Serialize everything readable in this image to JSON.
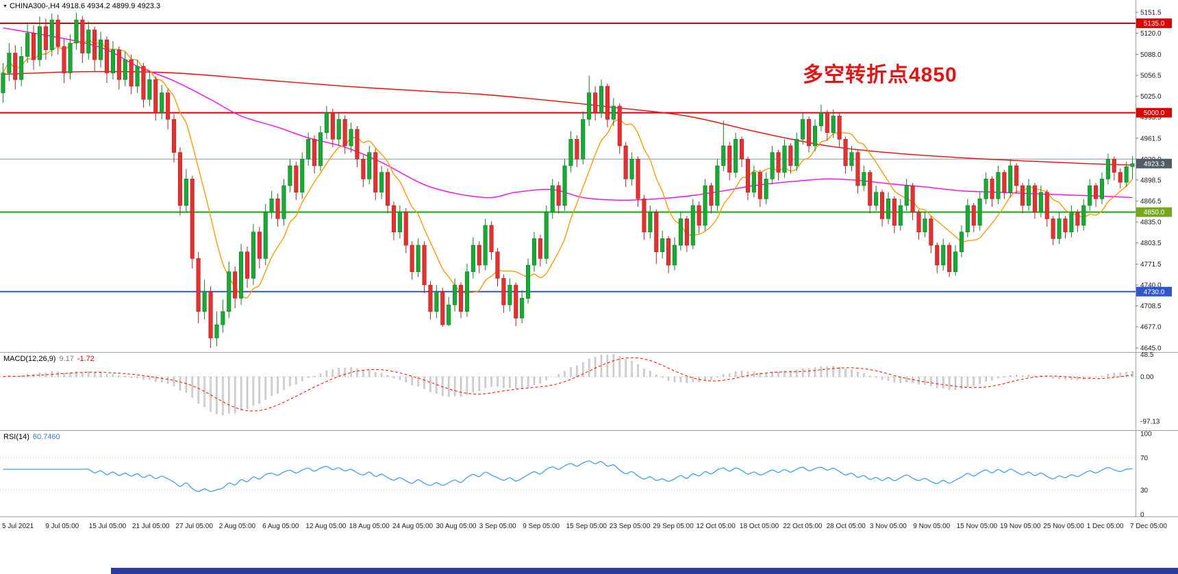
{
  "header": {
    "symbol_line": "CHINA300-,H4  4918.6 4934.2 4899.9 4923.3"
  },
  "annotation": {
    "text": "多空转折点4850",
    "color": "#e21414"
  },
  "colors": {
    "bottom_bar": "#2b3a9e",
    "separator": "#9aa0a6",
    "axis_text": "#1a1a1a"
  },
  "chart_data": {
    "type": "candlestick",
    "symbol": "CHINA300-",
    "timeframe": "H4",
    "title": "CHINA300-,H4",
    "last_candle": {
      "open": 4918.6,
      "high": 4934.2,
      "low": 4899.9,
      "close": 4923.3
    },
    "price_axis": {
      "min": 4645.0,
      "max": 5151.5,
      "ticks": [
        "5151.5",
        "5120.0",
        "5088.0",
        "5056.5",
        "5025.0",
        "4993.5",
        "4961.5",
        "4930.0",
        "4898.5",
        "4866.5",
        "4835.0",
        "4803.5",
        "4771.5",
        "4740.0",
        "4708.5",
        "4677.0",
        "4645.0"
      ]
    },
    "time_axis": [
      "5 Jul 2021",
      "9 Jul 05:00",
      "15 Jul 05:00",
      "21 Jul 05:00",
      "27 Jul 05:00",
      "2 Aug 05:00",
      "6 Aug 05:00",
      "12 Aug 05:00",
      "18 Aug 05:00",
      "24 Aug 05:00",
      "30 Aug 05:00",
      "3 Sep 05:00",
      "9 Sep 05:00",
      "15 Sep 05:00",
      "23 Sep 05:00",
      "29 Sep 05:00",
      "12 Oct 05:00",
      "18 Oct 05:00",
      "22 Oct 05:00",
      "28 Oct 05:00",
      "3 Nov 05:00",
      "9 Nov 05:00",
      "15 Nov 05:00",
      "19 Nov 05:00",
      "25 Nov 05:00",
      "1 Dec 05:00",
      "7 Dec 05:00"
    ],
    "levels": [
      {
        "value": 5135.0,
        "label": "5135.0",
        "color": "#dd0000",
        "badge": "#dd0000",
        "width": 2
      },
      {
        "value": 5000.0,
        "label": "5000.0",
        "color": "#dd0000",
        "badge": "#dd0000",
        "width": 2
      },
      {
        "value": 4930.0,
        "label": "",
        "color": "#7e99ad",
        "badge": "",
        "width": 1
      },
      {
        "value": 4850.0,
        "label": "4850.0",
        "color": "#00b200",
        "badge": "#76a81c",
        "width": 2
      },
      {
        "value": 4730.0,
        "label": "4730.0",
        "color": "#2f55cf",
        "badge": "#2f55cf",
        "width": 2
      }
    ],
    "current_price": {
      "value": 4923.3,
      "label": "4923.3",
      "badge": "#4e5d68"
    },
    "candle_colors": {
      "up_fill": "#19a934",
      "up_stroke": "#0c7d24",
      "down_fill": "#e23131",
      "down_stroke": "#b01f1f"
    },
    "overlays": {
      "slow_ma": {
        "color": "#ff0000",
        "points": [
          [
            0,
            5058
          ],
          [
            14,
            5062
          ],
          [
            28,
            5060
          ],
          [
            42,
            5050
          ],
          [
            56,
            5040
          ],
          [
            70,
            5032
          ],
          [
            78,
            5028
          ],
          [
            90,
            5018
          ],
          [
            100,
            5008
          ],
          [
            112,
            4995
          ],
          [
            124,
            4970
          ],
          [
            135,
            4950
          ],
          [
            146,
            4939
          ],
          [
            157,
            4932
          ],
          [
            168,
            4927
          ],
          [
            178,
            4923
          ],
          [
            185,
            4921
          ]
        ]
      },
      "mid_ma": {
        "color": "#ff00ff",
        "points": [
          [
            0,
            5128
          ],
          [
            11,
            5110
          ],
          [
            17,
            5095
          ],
          [
            22,
            5070
          ],
          [
            28,
            5048
          ],
          [
            34,
            5020
          ],
          [
            39,
            4995
          ],
          [
            45,
            4978
          ],
          [
            50,
            4962
          ],
          [
            56,
            4948
          ],
          [
            62,
            4925
          ],
          [
            70,
            4888
          ],
          [
            79,
            4872
          ],
          [
            84,
            4880
          ],
          [
            90,
            4884
          ],
          [
            95,
            4872
          ],
          [
            101,
            4868
          ],
          [
            107,
            4870
          ],
          [
            112,
            4874
          ],
          [
            118,
            4882
          ],
          [
            123,
            4890
          ],
          [
            129,
            4896
          ],
          [
            135,
            4900
          ],
          [
            140,
            4898
          ],
          [
            146,
            4892
          ],
          [
            151,
            4888
          ],
          [
            157,
            4882
          ],
          [
            163,
            4880
          ],
          [
            168,
            4878
          ],
          [
            174,
            4876
          ],
          [
            180,
            4874
          ],
          [
            185,
            4872
          ]
        ]
      },
      "fast_ma": {
        "color": "#ff9900",
        "period": 9
      }
    },
    "macd": {
      "label": "MACD(12,26,9)",
      "value_main": "9.17",
      "value_signal": "-1.72",
      "fast": 12,
      "slow": 26,
      "signal": 9,
      "axis": [
        "48.5",
        "0.00",
        "-97.13"
      ],
      "histogram_fill": "#d6d6d6",
      "histogram_stroke": "#9e9e9e",
      "signal_color": "#ff0000"
    },
    "rsi": {
      "label": "RSI(14)",
      "value_text": "60.7460",
      "period": 14,
      "axis": [
        "100",
        "70",
        "30",
        "0"
      ],
      "guide_levels": [
        70,
        30
      ],
      "color": "#3da0e8"
    },
    "candles": [
      [
        5030,
        5075,
        5015,
        5060
      ],
      [
        5060,
        5105,
        5048,
        5090
      ],
      [
        5090,
        5102,
        5035,
        5050
      ],
      [
        5050,
        5100,
        5040,
        5085
      ],
      [
        5085,
        5135,
        5075,
        5120
      ],
      [
        5120,
        5132,
        5065,
        5080
      ],
      [
        5080,
        5145,
        5070,
        5130
      ],
      [
        5130,
        5142,
        5080,
        5095
      ],
      [
        5095,
        5150,
        5085,
        5140
      ],
      [
        5140,
        5148,
        5088,
        5100
      ],
      [
        5100,
        5112,
        5045,
        5060
      ],
      [
        5060,
        5118,
        5050,
        5105
      ],
      [
        5105,
        5151,
        5095,
        5140
      ],
      [
        5140,
        5146,
        5075,
        5090
      ],
      [
        5090,
        5138,
        5080,
        5125
      ],
      [
        5125,
        5130,
        5062,
        5080
      ],
      [
        5080,
        5122,
        5068,
        5110
      ],
      [
        5110,
        5115,
        5045,
        5060
      ],
      [
        5060,
        5108,
        5050,
        5095
      ],
      [
        5095,
        5100,
        5035,
        5050
      ],
      [
        5050,
        5092,
        5040,
        5080
      ],
      [
        5080,
        5088,
        5028,
        5040
      ],
      [
        5040,
        5080,
        5030,
        5070
      ],
      [
        5070,
        5075,
        5008,
        5020
      ],
      [
        5020,
        5062,
        5010,
        5050
      ],
      [
        5050,
        5055,
        4988,
        5000
      ],
      [
        5000,
        5042,
        4990,
        5030
      ],
      [
        5030,
        5036,
        4975,
        4990
      ],
      [
        4990,
        4998,
        4925,
        4940
      ],
      [
        4940,
        4948,
        4845,
        4860
      ],
      [
        4860,
        4915,
        4850,
        4900
      ],
      [
        4900,
        4905,
        4765,
        4780
      ],
      [
        4780,
        4790,
        4682,
        4700
      ],
      [
        4700,
        4748,
        4688,
        4730
      ],
      [
        4730,
        4738,
        4645,
        4660
      ],
      [
        4660,
        4700,
        4648,
        4680
      ],
      [
        4680,
        4718,
        4668,
        4700
      ],
      [
        4700,
        4775,
        4690,
        4760
      ],
      [
        4760,
        4768,
        4705,
        4720
      ],
      [
        4720,
        4802,
        4710,
        4790
      ],
      [
        4790,
        4798,
        4736,
        4750
      ],
      [
        4750,
        4832,
        4740,
        4820
      ],
      [
        4820,
        4828,
        4765,
        4780
      ],
      [
        4780,
        4862,
        4770,
        4850
      ],
      [
        4850,
        4882,
        4840,
        4870
      ],
      [
        4870,
        4878,
        4828,
        4840
      ],
      [
        4840,
        4900,
        4830,
        4890
      ],
      [
        4890,
        4930,
        4880,
        4920
      ],
      [
        4920,
        4926,
        4868,
        4880
      ],
      [
        4880,
        4940,
        4870,
        4930
      ],
      [
        4930,
        4970,
        4920,
        4960
      ],
      [
        4960,
        4966,
        4908,
        4920
      ],
      [
        4920,
        4980,
        4912,
        4970
      ],
      [
        4970,
        5010,
        4960,
        5000
      ],
      [
        5000,
        5006,
        4948,
        4960
      ],
      [
        4960,
        5000,
        4950,
        4990
      ],
      [
        4990,
        4996,
        4938,
        4950
      ],
      [
        4950,
        4985,
        4940,
        4975
      ],
      [
        4975,
        4980,
        4918,
        4930
      ],
      [
        4930,
        4936,
        4888,
        4900
      ],
      [
        4900,
        4950,
        4892,
        4940
      ],
      [
        4940,
        4946,
        4868,
        4880
      ],
      [
        4880,
        4920,
        4870,
        4910
      ],
      [
        4910,
        4916,
        4848,
        4860
      ],
      [
        4860,
        4866,
        4808,
        4820
      ],
      [
        4820,
        4860,
        4810,
        4850
      ],
      [
        4850,
        4856,
        4788,
        4800
      ],
      [
        4800,
        4806,
        4748,
        4760
      ],
      [
        4760,
        4810,
        4752,
        4800
      ],
      [
        4800,
        4806,
        4728,
        4740
      ],
      [
        4740,
        4746,
        4688,
        4700
      ],
      [
        4700,
        4740,
        4690,
        4730
      ],
      [
        4730,
        4736,
        4677,
        4680
      ],
      [
        4680,
        4722,
        4678,
        4710
      ],
      [
        4710,
        4750,
        4700,
        4740
      ],
      [
        4740,
        4744,
        4690,
        4700
      ],
      [
        4700,
        4772,
        4692,
        4760
      ],
      [
        4760,
        4812,
        4750,
        4800
      ],
      [
        4800,
        4806,
        4758,
        4770
      ],
      [
        4770,
        4840,
        4762,
        4830
      ],
      [
        4830,
        4836,
        4778,
        4790
      ],
      [
        4790,
        4796,
        4738,
        4750
      ],
      [
        4750,
        4756,
        4698,
        4710
      ],
      [
        4710,
        4750,
        4700,
        4740
      ],
      [
        4740,
        4744,
        4678,
        4690
      ],
      [
        4690,
        4732,
        4682,
        4720
      ],
      [
        4720,
        4780,
        4712,
        4770
      ],
      [
        4770,
        4820,
        4760,
        4810
      ],
      [
        4810,
        4816,
        4768,
        4780
      ],
      [
        4780,
        4860,
        4772,
        4850
      ],
      [
        4850,
        4900,
        4840,
        4890
      ],
      [
        4890,
        4896,
        4848,
        4860
      ],
      [
        4860,
        4930,
        4852,
        4920
      ],
      [
        4920,
        4972,
        4910,
        4960
      ],
      [
        4960,
        4966,
        4918,
        4930
      ],
      [
        4930,
        5002,
        4922,
        4990
      ],
      [
        4990,
        5056,
        4980,
        5030
      ],
      [
        5030,
        5040,
        4988,
        5000
      ],
      [
        5000,
        5050,
        4992,
        5040
      ],
      [
        5040,
        5044,
        4978,
        4990
      ],
      [
        4990,
        5022,
        4980,
        5010
      ],
      [
        5010,
        5014,
        4938,
        4950
      ],
      [
        4950,
        4956,
        4888,
        4900
      ],
      [
        4900,
        4940,
        4890,
        4930
      ],
      [
        4930,
        4934,
        4858,
        4870
      ],
      [
        4870,
        4876,
        4808,
        4820
      ],
      [
        4820,
        4860,
        4810,
        4850
      ],
      [
        4850,
        4854,
        4772,
        4790
      ],
      [
        4790,
        4822,
        4780,
        4810
      ],
      [
        4810,
        4814,
        4758,
        4770
      ],
      [
        4770,
        4812,
        4762,
        4800
      ],
      [
        4800,
        4850,
        4792,
        4840
      ],
      [
        4840,
        4844,
        4790,
        4800
      ],
      [
        4800,
        4870,
        4794,
        4860
      ],
      [
        4860,
        4866,
        4818,
        4830
      ],
      [
        4830,
        4900,
        4822,
        4890
      ],
      [
        4890,
        4894,
        4848,
        4860
      ],
      [
        4860,
        4930,
        4852,
        4920
      ],
      [
        4920,
        4988,
        4912,
        4950
      ],
      [
        4950,
        4956,
        4898,
        4910
      ],
      [
        4910,
        4970,
        4902,
        4960
      ],
      [
        4960,
        4964,
        4918,
        4930
      ],
      [
        4930,
        4934,
        4868,
        4880
      ],
      [
        4880,
        4920,
        4872,
        4910
      ],
      [
        4910,
        4914,
        4858,
        4870
      ],
      [
        4870,
        4910,
        4862,
        4900
      ],
      [
        4900,
        4950,
        4892,
        4940
      ],
      [
        4940,
        4944,
        4898,
        4910
      ],
      [
        4910,
        4960,
        4902,
        4950
      ],
      [
        4950,
        4954,
        4908,
        4920
      ],
      [
        4920,
        4970,
        4912,
        4960
      ],
      [
        4960,
        5000,
        4952,
        4990
      ],
      [
        4990,
        4994,
        4940,
        4950
      ],
      [
        4950,
        4990,
        4942,
        4980
      ],
      [
        4980,
        5012,
        4972,
        5000
      ],
      [
        5000,
        5004,
        4958,
        4970
      ],
      [
        4970,
        5005,
        4962,
        4995
      ],
      [
        4995,
        4999,
        4948,
        4960
      ],
      [
        4960,
        4964,
        4908,
        4920
      ],
      [
        4920,
        4950,
        4912,
        4940
      ],
      [
        4940,
        4944,
        4878,
        4890
      ],
      [
        4890,
        4920,
        4882,
        4910
      ],
      [
        4910,
        4914,
        4848,
        4860
      ],
      [
        4860,
        4890,
        4852,
        4880
      ],
      [
        4880,
        4884,
        4828,
        4840
      ],
      [
        4840,
        4880,
        4832,
        4870
      ],
      [
        4870,
        4874,
        4818,
        4830
      ],
      [
        4830,
        4870,
        4822,
        4860
      ],
      [
        4860,
        4900,
        4852,
        4890
      ],
      [
        4890,
        4894,
        4838,
        4850
      ],
      [
        4850,
        4854,
        4808,
        4820
      ],
      [
        4820,
        4850,
        4812,
        4840
      ],
      [
        4840,
        4844,
        4788,
        4800
      ],
      [
        4800,
        4804,
        4758,
        4770
      ],
      [
        4770,
        4810,
        4762,
        4800
      ],
      [
        4800,
        4804,
        4752,
        4760
      ],
      [
        4760,
        4800,
        4754,
        4790
      ],
      [
        4790,
        4830,
        4782,
        4820
      ],
      [
        4820,
        4870,
        4812,
        4860
      ],
      [
        4860,
        4864,
        4820,
        4830
      ],
      [
        4830,
        4880,
        4822,
        4870
      ],
      [
        4870,
        4910,
        4862,
        4900
      ],
      [
        4900,
        4904,
        4858,
        4870
      ],
      [
        4870,
        4920,
        4862,
        4910
      ],
      [
        4910,
        4914,
        4870,
        4880
      ],
      [
        4880,
        4930,
        4872,
        4920
      ],
      [
        4920,
        4924,
        4878,
        4890
      ],
      [
        4890,
        4894,
        4848,
        4860
      ],
      [
        4860,
        4900,
        4852,
        4890
      ],
      [
        4890,
        4894,
        4840,
        4850
      ],
      [
        4850,
        4890,
        4842,
        4880
      ],
      [
        4880,
        4884,
        4828,
        4840
      ],
      [
        4840,
        4844,
        4800,
        4810
      ],
      [
        4810,
        4850,
        4802,
        4840
      ],
      [
        4840,
        4844,
        4810,
        4820
      ],
      [
        4820,
        4860,
        4812,
        4850
      ],
      [
        4850,
        4854,
        4820,
        4830
      ],
      [
        4830,
        4870,
        4822,
        4860
      ],
      [
        4860,
        4900,
        4852,
        4890
      ],
      [
        4890,
        4894,
        4858,
        4870
      ],
      [
        4870,
        4910,
        4862,
        4900
      ],
      [
        4900,
        4938,
        4892,
        4930
      ],
      [
        4930,
        4934,
        4898,
        4910
      ],
      [
        4910,
        4916,
        4886,
        4895
      ],
      [
        4895,
        4926,
        4888,
        4918.6
      ],
      [
        4918.6,
        4934.2,
        4899.9,
        4923.3
      ]
    ]
  }
}
